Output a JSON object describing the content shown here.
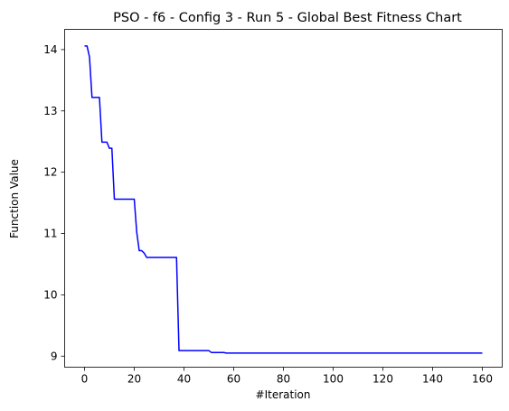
{
  "chart_data": {
    "type": "line",
    "title": "PSO - f6 - Config 3 - Run 5 - Global Best Fitness Chart",
    "xlabel": "#Iteration",
    "ylabel": "Function Value",
    "xlim": [
      -8,
      168
    ],
    "ylim": [
      8.82,
      14.33
    ],
    "xticks": [
      0,
      20,
      40,
      60,
      80,
      100,
      120,
      140,
      160
    ],
    "yticks": [
      9,
      10,
      11,
      12,
      13,
      14
    ],
    "grid": false,
    "series": [
      {
        "color": "#0000ff",
        "x": [
          0,
          1,
          2,
          3,
          4,
          5,
          6,
          7,
          8,
          9,
          10,
          11,
          12,
          20,
          21,
          22,
          23,
          24,
          25,
          26,
          37,
          38,
          50,
          51,
          56,
          57,
          160
        ],
        "y": [
          14.06,
          14.06,
          13.88,
          13.22,
          13.22,
          13.22,
          13.22,
          12.49,
          12.49,
          12.49,
          12.39,
          12.39,
          11.56,
          11.56,
          11.02,
          10.72,
          10.72,
          10.68,
          10.61,
          10.61,
          10.61,
          9.09,
          9.09,
          9.06,
          9.06,
          9.05,
          9.05
        ]
      }
    ]
  }
}
